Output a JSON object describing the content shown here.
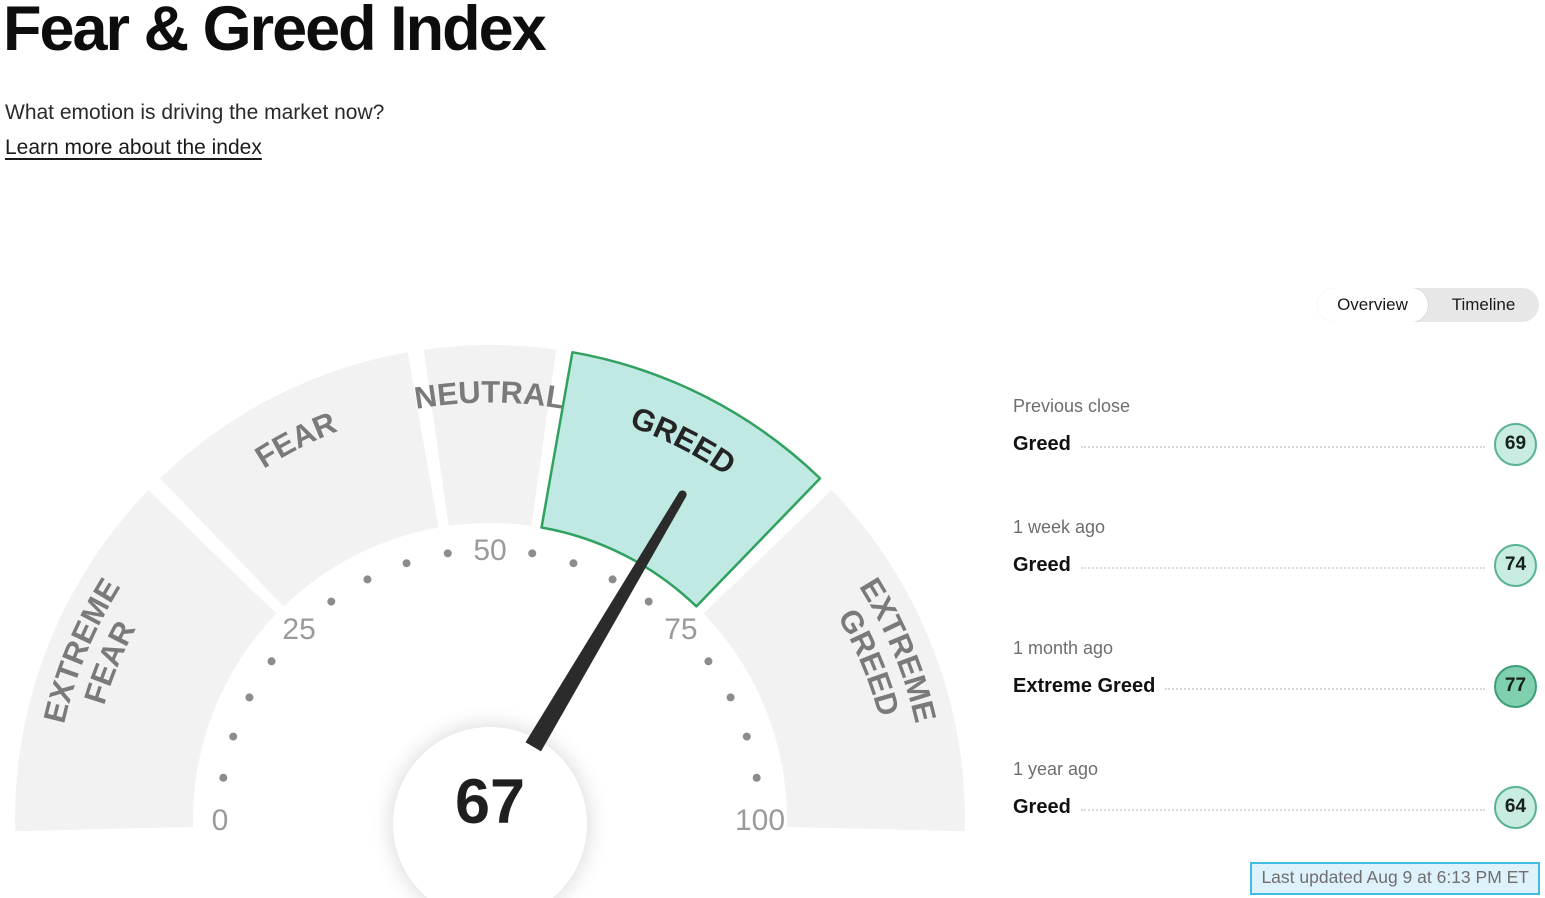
{
  "header": {
    "title": "Fear & Greed Index",
    "subtitle": "What emotion is driving the market now?",
    "link": "Learn more about the index"
  },
  "tabs": {
    "overview": "Overview",
    "timeline": "Timeline",
    "active": "Overview"
  },
  "history": {
    "rows": [
      {
        "period": "Previous close",
        "rating": "Greed",
        "value": "69",
        "tone": "light"
      },
      {
        "period": "1 week ago",
        "rating": "Greed",
        "value": "74",
        "tone": "light"
      },
      {
        "period": "1 month ago",
        "rating": "Extreme Greed",
        "value": "77",
        "tone": "dark"
      },
      {
        "period": "1 year ago",
        "rating": "Greed",
        "value": "64",
        "tone": "light"
      }
    ]
  },
  "footer": {
    "last_updated": "Last updated Aug 9 at 6:13 PM ET"
  },
  "theme": {
    "badge_light_bg": "#c9ece2",
    "badge_light_border": "#58b293",
    "badge_dark_bg": "#7fd0ae",
    "badge_dark_border": "#3c9d79",
    "updated_bg": "#def2fb",
    "updated_border": "#41bce2"
  },
  "chart_data": {
    "type": "gauge",
    "title": "Fear & Greed Index",
    "value": 67,
    "value_label": "67",
    "min": 0,
    "max": 100,
    "current_mood": "Greed",
    "segments": [
      {
        "label": "Extreme Fear",
        "lines": [
          "EXTREME",
          "FEAR"
        ],
        "from": 0,
        "to": 25,
        "highlighted": false
      },
      {
        "label": "Fear",
        "lines": [
          "FEAR"
        ],
        "from": 25,
        "to": 45,
        "highlighted": false
      },
      {
        "label": "Neutral",
        "lines": [
          "NEUTRAL"
        ],
        "from": 45,
        "to": 55,
        "highlighted": false
      },
      {
        "label": "Greed",
        "lines": [
          "GREED"
        ],
        "from": 55,
        "to": 75,
        "highlighted": true
      },
      {
        "label": "Extreme Greed",
        "lines": [
          "EXTREME",
          "GREED"
        ],
        "from": 75,
        "to": 100,
        "highlighted": false
      }
    ],
    "tick_labels": [
      {
        "value": 0,
        "label": "0"
      },
      {
        "value": 25,
        "label": "25"
      },
      {
        "value": 50,
        "label": "50"
      },
      {
        "value": 75,
        "label": "75"
      },
      {
        "value": 100,
        "label": "100"
      }
    ],
    "dot_interval": 5,
    "colors": {
      "segment_fill": "#f2f2f2",
      "highlight_fill": "#bfe9e2",
      "highlight_stroke": "#31a15f",
      "label_color": "#7a7a7a",
      "highlight_label_color": "#242424",
      "tick_color": "#9a9a9a",
      "dot_color": "#8c8c8c",
      "needle_color": "#2b2b2b",
      "value_color": "#1f1f1f"
    }
  }
}
